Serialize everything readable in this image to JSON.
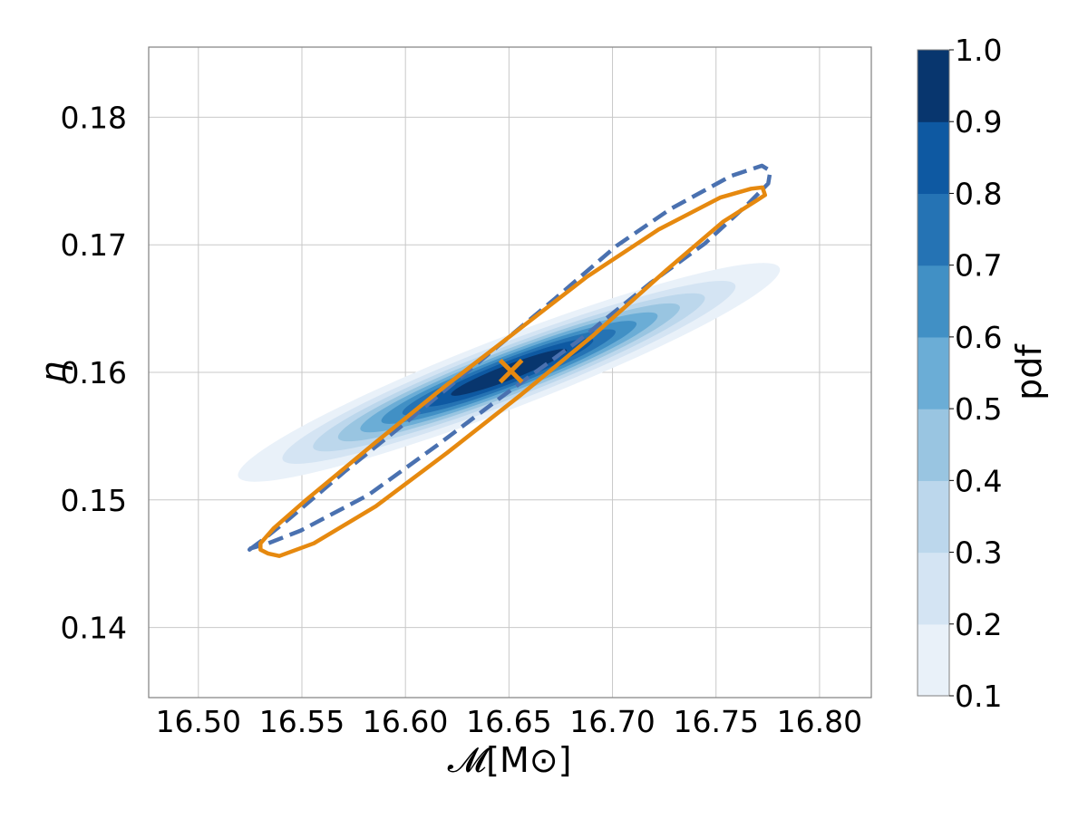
{
  "chart_data": {
    "type": "contour",
    "title": "",
    "xlabel": "𝓜[M⊙]",
    "ylabel": "η",
    "xlim": [
      16.476,
      16.825
    ],
    "ylim": [
      0.1345,
      0.1855
    ],
    "x_ticks": [
      16.5,
      16.55,
      16.6,
      16.65,
      16.7,
      16.75,
      16.8
    ],
    "x_tick_labels": [
      "16.50",
      "16.55",
      "16.60",
      "16.65",
      "16.70",
      "16.75",
      "16.80"
    ],
    "y_ticks": [
      0.14,
      0.15,
      0.16,
      0.17,
      0.18
    ],
    "y_tick_labels": [
      "0.14",
      "0.15",
      "0.16",
      "0.17",
      "0.18"
    ],
    "grid": true,
    "filled_pdf": {
      "peak": [
        16.65,
        0.16
      ],
      "levels": [
        0.1,
        0.2,
        0.3,
        0.4,
        0.5,
        0.6,
        0.7,
        0.8,
        0.9,
        1.0
      ],
      "level_colors": [
        "#e9f1f9",
        "#d4e4f3",
        "#bcd7ec",
        "#99c5e1",
        "#6badd6",
        "#4190c5",
        "#2573b4",
        "#0e59a2",
        "#08366e"
      ]
    },
    "series": [
      {
        "style": "dashed",
        "color": "#4a71b0",
        "points": [
          [
            16.5247,
            0.1461
          ],
          [
            16.5314,
            0.1469
          ],
          [
            16.5437,
            0.1485
          ],
          [
            16.5705,
            0.1522
          ],
          [
            16.602,
            0.1563
          ],
          [
            16.6399,
            0.1614
          ],
          [
            16.6724,
            0.1658
          ],
          [
            16.7018,
            0.1699
          ],
          [
            16.7279,
            0.1728
          ],
          [
            16.7572,
            0.1754
          ],
          [
            16.7722,
            0.1762
          ],
          [
            16.7762,
            0.1758
          ],
          [
            16.7752,
            0.1748
          ],
          [
            16.7654,
            0.1732
          ],
          [
            16.7446,
            0.1701
          ],
          [
            16.7183,
            0.167
          ],
          [
            16.6838,
            0.1625
          ],
          [
            16.6475,
            0.1582
          ],
          [
            16.6155,
            0.1543
          ],
          [
            16.5822,
            0.1504
          ],
          [
            16.5495,
            0.1476
          ],
          [
            16.5337,
            0.1466
          ],
          [
            16.5252,
            0.1462
          ]
        ]
      },
      {
        "style": "solid",
        "color": "#e6890f",
        "points": [
          [
            16.53,
            0.1461
          ],
          [
            16.5336,
            0.1458
          ],
          [
            16.5391,
            0.1456
          ],
          [
            16.5558,
            0.1466
          ],
          [
            16.5857,
            0.1495
          ],
          [
            16.6202,
            0.1537
          ],
          [
            16.6555,
            0.1582
          ],
          [
            16.6907,
            0.1629
          ],
          [
            16.7259,
            0.168
          ],
          [
            16.7533,
            0.1718
          ],
          [
            16.7699,
            0.1735
          ],
          [
            16.7737,
            0.1739
          ],
          [
            16.7724,
            0.1745
          ],
          [
            16.767,
            0.1744
          ],
          [
            16.752,
            0.1737
          ],
          [
            16.7223,
            0.1712
          ],
          [
            16.6877,
            0.1675
          ],
          [
            16.6535,
            0.1632
          ],
          [
            16.619,
            0.1589
          ],
          [
            16.5848,
            0.1544
          ],
          [
            16.552,
            0.15
          ],
          [
            16.5365,
            0.1478
          ],
          [
            16.53,
            0.1466
          ]
        ]
      }
    ],
    "marker": {
      "symbol": "x",
      "x": 16.651,
      "y": 0.1601,
      "color": "#e6890f"
    },
    "colorbar": {
      "label": "pdf",
      "ticks": [
        "0.1",
        "0.2",
        "0.3",
        "0.4",
        "0.5",
        "0.6",
        "0.7",
        "0.8",
        "0.9",
        "1.0"
      ]
    }
  }
}
